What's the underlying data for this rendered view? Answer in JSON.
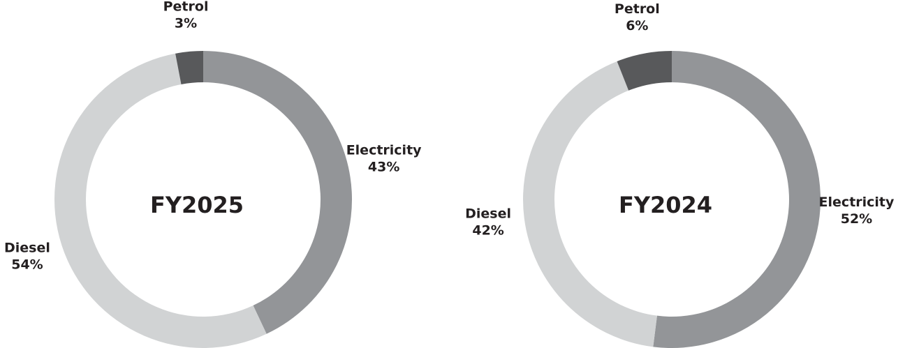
{
  "chart_data": [
    {
      "type": "donut",
      "title": "FY2025",
      "categories": [
        "Electricity",
        "Diesel",
        "Petrol"
      ],
      "values": [
        43,
        54,
        3
      ],
      "value_labels": [
        "43%",
        "54%",
        "3%"
      ],
      "colors": [
        "#939598",
        "#d1d3d4",
        "#58595b"
      ]
    },
    {
      "type": "donut",
      "title": "FY2024",
      "categories": [
        "Electricity",
        "Diesel",
        "Petrol"
      ],
      "values": [
        52,
        42,
        6
      ],
      "value_labels": [
        "52%",
        "42%",
        "6%"
      ],
      "colors": [
        "#939598",
        "#d1d3d4",
        "#58595b"
      ]
    }
  ]
}
